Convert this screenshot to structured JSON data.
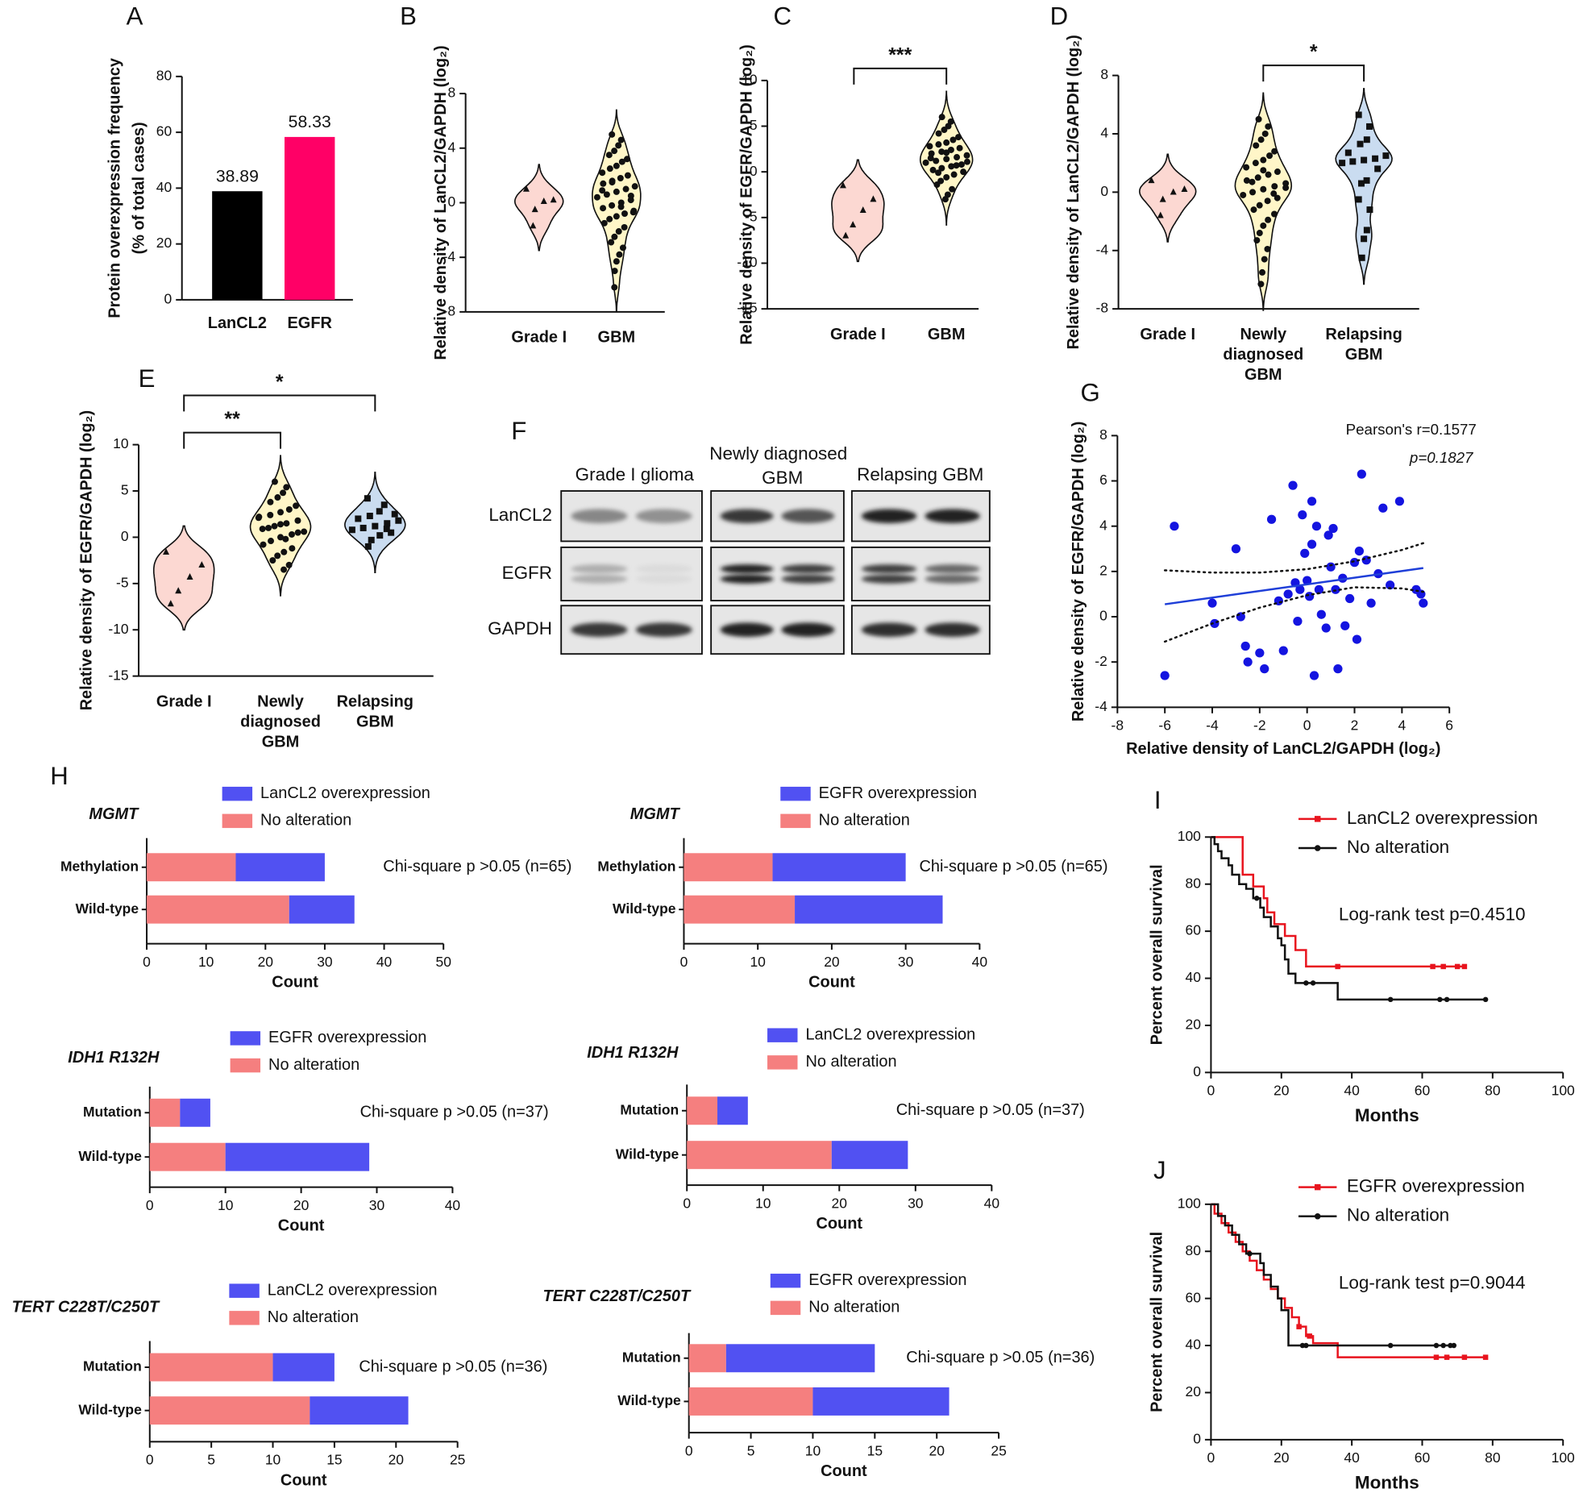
{
  "chart_data": [
    {
      "type": "bar",
      "panel": "A",
      "ylabel": [
        "Protein overexpression frequency",
        "(% of total cases)"
      ],
      "categories": [
        "LanCL2",
        "EGFR"
      ],
      "values": [
        38.89,
        58.33
      ],
      "colors": [
        "#000000",
        "#ff0066"
      ],
      "ylim": [
        0,
        80
      ],
      "yticks": [
        0,
        20,
        40,
        60,
        80
      ]
    },
    {
      "type": "violin",
      "panel": "B",
      "ylabel": "Relative density of LanCL2/GAPDH (log₂)",
      "categories": [
        [
          "Grade I"
        ],
        [
          "GBM"
        ]
      ],
      "series": [
        {
          "color": "#fcd8d2",
          "marker": "triangle",
          "values": [
            1.0,
            0.2,
            0.1,
            -0.5,
            -1.7
          ]
        },
        {
          "color": "#fff6c8",
          "marker": "circle",
          "values": [
            5,
            4.6,
            4.2,
            3.8,
            3.5,
            3.2,
            3,
            2.7,
            2.5,
            2.2,
            2,
            1.8,
            1.6,
            1.4,
            1.2,
            1,
            0.8,
            0.6,
            0.4,
            0.2,
            0,
            -0.2,
            -0.4,
            -0.6,
            -0.8,
            -1,
            -1.2,
            -1.5,
            -1.8,
            -2.1,
            -2.5,
            -2.9,
            -3.3,
            -3.8,
            -4.3,
            -5,
            -6.2,
            0.5,
            -0.3,
            1.5,
            0.9,
            -0.7
          ]
        }
      ],
      "ylim": [
        -8,
        8
      ],
      "yticks": [
        -8,
        -4,
        0,
        4,
        8
      ]
    },
    {
      "type": "violin",
      "panel": "C",
      "ylabel": "Relative density of EGFR/GAPDH (log₂)",
      "categories": [
        [
          "Grade I"
        ],
        [
          "GBM"
        ]
      ],
      "significance": [
        "***"
      ],
      "series": [
        {
          "color": "#fcd8d2",
          "marker": "triangle",
          "values": [
            -1.5,
            -3,
            -4.2,
            -5.8,
            -7
          ]
        },
        {
          "color": "#fff6c8",
          "marker": "circle",
          "values": [
            6,
            5.5,
            5,
            4.6,
            4.2,
            3.8,
            3.5,
            3.2,
            3,
            2.8,
            2.6,
            2.4,
            2.2,
            2,
            1.8,
            1.6,
            1.4,
            1.2,
            1,
            0.8,
            0.6,
            0.4,
            0.2,
            0,
            -0.3,
            -0.6,
            -1,
            -1.4,
            -1.9,
            -2.5,
            -3,
            1.5,
            1.1,
            0.7,
            2.1,
            -0.1
          ]
        }
      ],
      "ylim": [
        -15,
        10
      ],
      "yticks": [
        -15,
        -10,
        -5,
        0,
        5,
        10
      ]
    },
    {
      "type": "violin",
      "panel": "D",
      "ylabel": "Relative density of LanCL2/GAPDH (log₂)",
      "categories": [
        [
          "Grade I"
        ],
        [
          "Newly",
          "diagnosed",
          "GBM"
        ],
        [
          "Relapsing",
          "GBM"
        ]
      ],
      "significance": [
        "*"
      ],
      "series": [
        {
          "color": "#fcd8d2",
          "marker": "triangle",
          "values": [
            0.8,
            0.2,
            0,
            -0.5,
            -1.6
          ]
        },
        {
          "color": "#fff6c8",
          "marker": "circle",
          "values": [
            5,
            4.5,
            4,
            3.6,
            3.2,
            2.8,
            2.5,
            2.2,
            2,
            1.7,
            1.4,
            1.2,
            1,
            0.8,
            0.6,
            0.4,
            0.2,
            0,
            -0.2,
            -0.4,
            -0.6,
            -0.9,
            -1.2,
            -1.5,
            -1.9,
            -2.3,
            -2.8,
            -3.3,
            -3.9,
            -4.6,
            -5.5,
            -6.3,
            0.3,
            -0.1,
            1.5,
            0.7
          ]
        },
        {
          "color": "#cadcf0",
          "marker": "square",
          "values": [
            5.3,
            4.5,
            3.6,
            3.3,
            2.7,
            2.5,
            2.3,
            2.2,
            2.1,
            2,
            1.6,
            0.8,
            0.6,
            -0.5,
            -1.2,
            -2.6,
            -3.2,
            -4.5
          ]
        }
      ],
      "ylim": [
        -8,
        8
      ],
      "yticks": [
        -8,
        -4,
        0,
        4,
        8
      ]
    },
    {
      "type": "violin",
      "panel": "E",
      "ylabel": "Relative density of EGFR/GAPDH (log₂)",
      "categories": [
        [
          "Grade I"
        ],
        [
          "Newly",
          "diagnosed",
          "GBM"
        ],
        [
          "Relapsing",
          "GBM"
        ]
      ],
      "significance": [
        "*",
        "**"
      ],
      "series": [
        {
          "color": "#fcd8d2",
          "marker": "triangle",
          "values": [
            -1.6,
            -3,
            -4.3,
            -5.8,
            -7.2
          ]
        },
        {
          "color": "#fff6c8",
          "marker": "circle",
          "values": [
            6,
            5.4,
            4.8,
            4.3,
            3.8,
            3.4,
            3,
            2.7,
            2.4,
            2.1,
            1.8,
            1.5,
            1.2,
            0.9,
            0.6,
            0.3,
            0,
            -0.4,
            -0.8,
            -1.2,
            -1.6,
            -2,
            -2.5,
            -3,
            -3.5,
            1.4,
            1,
            2.2,
            0.5,
            -0.2
          ]
        },
        {
          "color": "#cadcf0",
          "marker": "square",
          "values": [
            4.2,
            3.5,
            2.8,
            2.3,
            2,
            1.8,
            1.5,
            1.2,
            1,
            0.8,
            0.5,
            0.2,
            -0.3,
            -1,
            2.5,
            0.9
          ]
        }
      ],
      "ylim": [
        -15,
        10
      ],
      "yticks": [
        -15,
        -10,
        -5,
        0,
        5,
        10
      ]
    },
    {
      "type": "scatter",
      "panel": "G",
      "xlabel": "Relative density of LanCL2/GAPDH  (log₂)",
      "ylabel": "Relative density of EGFR/GAPDH  (log₂)",
      "annotations": [
        "Pearson's r=0.1577",
        "p=0.1827"
      ],
      "color": "#1414e0",
      "x": [
        -6,
        -5.6,
        -4,
        -3.9,
        -3,
        -2.8,
        -2.6,
        -2.5,
        -2,
        -1.8,
        -1.5,
        -1.2,
        -1,
        -0.8,
        -0.6,
        -0.5,
        -0.4,
        -0.3,
        -0.2,
        0,
        0.1,
        0.2,
        0.3,
        0.4,
        0.5,
        0.6,
        0.8,
        1,
        1.1,
        1.2,
        1.3,
        1.5,
        1.6,
        1.8,
        2,
        2.1,
        2.3,
        2.5,
        2.7,
        3,
        3.2,
        3.5,
        3.9,
        4.6,
        4.8,
        4.9,
        0.2,
        -0.1,
        0.9,
        2.2
      ],
      "y": [
        -2.6,
        4,
        0.6,
        -0.3,
        3,
        0,
        -1.3,
        -2,
        -1.6,
        -2.3,
        4.3,
        0.7,
        -1.5,
        1,
        5.8,
        1.5,
        -0.2,
        1.2,
        4.5,
        1.6,
        0.9,
        5.1,
        -2.6,
        4,
        1.2,
        0.1,
        -0.5,
        2.2,
        3.9,
        1.2,
        -2.3,
        1.7,
        -0.4,
        0.8,
        2.4,
        -1,
        6.3,
        2.5,
        0.6,
        1.9,
        4.8,
        1.4,
        5.1,
        1.2,
        1.0,
        0.6,
        3.2,
        2.8,
        3.6,
        2.9
      ],
      "fit": {
        "color": "#1f3fd8",
        "x": [
          -6,
          4.9
        ],
        "y": [
          0.55,
          2.15
        ]
      },
      "ci": {
        "x": [
          -6,
          -4,
          -2,
          0,
          2,
          4,
          4.9
        ],
        "upper": [
          2.05,
          1.95,
          1.95,
          2.1,
          2.45,
          2.95,
          3.25
        ],
        "lower": [
          -1.1,
          -0.3,
          0.4,
          0.95,
          1.3,
          1.25,
          1.1
        ]
      },
      "xlim": [
        -8,
        6
      ],
      "xticks": [
        -8,
        -6,
        -4,
        -2,
        0,
        2,
        4,
        6
      ],
      "ylim": [
        -4,
        8
      ],
      "yticks": [
        -4,
        -2,
        0,
        2,
        4,
        6,
        8
      ]
    },
    {
      "type": "bar",
      "orientation": "horizontal",
      "stacked": true,
      "panel": "H",
      "title": "MGMT",
      "xlabel": "Count",
      "annotation": "Chi-square p >0.05 (n=65)",
      "categories": [
        "Methylation",
        "Wild-type"
      ],
      "series": [
        {
          "name": "No alteration",
          "color": "#f57f7f",
          "values": [
            15,
            24
          ]
        },
        {
          "name": "LanCL2 overexpression",
          "color": "#5151f2",
          "values": [
            15,
            11
          ]
        }
      ],
      "xlim": [
        0,
        50
      ],
      "xticks": [
        0,
        10,
        20,
        30,
        40,
        50
      ]
    },
    {
      "type": "bar",
      "orientation": "horizontal",
      "stacked": true,
      "title": "MGMT",
      "xlabel": "Count",
      "annotation": "Chi-square p >0.05 (n=65)",
      "categories": [
        "Methylation",
        "Wild-type"
      ],
      "series": [
        {
          "name": "No alteration",
          "color": "#f57f7f",
          "values": [
            12,
            15
          ]
        },
        {
          "name": "EGFR overexpression",
          "color": "#5151f2",
          "values": [
            18,
            20
          ]
        }
      ],
      "xlim": [
        0,
        40
      ],
      "xticks": [
        0,
        10,
        20,
        30,
        40
      ]
    },
    {
      "type": "bar",
      "orientation": "horizontal",
      "stacked": true,
      "title": "IDH1 R132H",
      "xlabel": "Count",
      "annotation": "Chi-square p >0.05 (n=37)",
      "categories": [
        "Mutation",
        "Wild-type"
      ],
      "series": [
        {
          "name": "No alteration",
          "color": "#f57f7f",
          "values": [
            4,
            10
          ]
        },
        {
          "name": "EGFR overexpression",
          "color": "#5151f2",
          "values": [
            4,
            19
          ]
        }
      ],
      "xlim": [
        0,
        40
      ],
      "xticks": [
        0,
        10,
        20,
        30,
        40
      ]
    },
    {
      "type": "bar",
      "orientation": "horizontal",
      "stacked": true,
      "title": "IDH1 R132H",
      "xlabel": "Count",
      "annotation": "Chi-square p >0.05 (n=37)",
      "categories": [
        "Mutation",
        "Wild-type"
      ],
      "series": [
        {
          "name": "No alteration",
          "color": "#f57f7f",
          "values": [
            4,
            19
          ]
        },
        {
          "name": "LanCL2 overexpression",
          "color": "#5151f2",
          "values": [
            4,
            10
          ]
        }
      ],
      "xlim": [
        0,
        40
      ],
      "xticks": [
        0,
        10,
        20,
        30,
        40
      ]
    },
    {
      "type": "bar",
      "orientation": "horizontal",
      "stacked": true,
      "title": "TERT C228T/C250T",
      "xlabel": "Count",
      "annotation": "Chi-square p >0.05 (n=36)",
      "categories": [
        "Mutation",
        "Wild-type"
      ],
      "series": [
        {
          "name": "No alteration",
          "color": "#f57f7f",
          "values": [
            10,
            13
          ]
        },
        {
          "name": "LanCL2 overexpression",
          "color": "#5151f2",
          "values": [
            5,
            8
          ]
        }
      ],
      "xlim": [
        0,
        25
      ],
      "xticks": [
        0,
        5,
        10,
        15,
        20,
        25
      ]
    },
    {
      "type": "bar",
      "orientation": "horizontal",
      "stacked": true,
      "title": "TERT C228T/C250T",
      "xlabel": "Count",
      "annotation": "Chi-square p >0.05 (n=36)",
      "categories": [
        "Mutation",
        "Wild-type"
      ],
      "series": [
        {
          "name": "No alteration",
          "color": "#f57f7f",
          "values": [
            3,
            10
          ]
        },
        {
          "name": "EGFR overexpression",
          "color": "#5151f2",
          "values": [
            12,
            11
          ]
        }
      ],
      "xlim": [
        0,
        25
      ],
      "xticks": [
        0,
        5,
        10,
        15,
        20,
        25
      ]
    },
    {
      "type": "survival",
      "panel": "I",
      "xlabel": "Months",
      "ylabel": "Percent overall survival",
      "annotation": "Log-rank test p=0.4510",
      "series": [
        {
          "name": "LanCL2 overexpression",
          "color": "#e8141e",
          "marker": "square",
          "x": [
            0,
            9,
            12,
            15,
            16,
            18,
            21,
            24,
            27
          ],
          "values": [
            100,
            84,
            79,
            74,
            68,
            63,
            58,
            52,
            45
          ],
          "censor_x": [
            36,
            63,
            66,
            70,
            72
          ],
          "censor_values": [
            45,
            45,
            45,
            45,
            45
          ]
        },
        {
          "name": "No alteration",
          "color": "#111111",
          "marker": "circle",
          "x": [
            0,
            1,
            2,
            3,
            5,
            6,
            8,
            10,
            12,
            14,
            15,
            17,
            19,
            20,
            21,
            22,
            24,
            36
          ],
          "values": [
            100,
            97,
            94,
            91,
            88,
            84,
            80,
            78,
            74,
            70,
            66,
            62,
            57,
            54,
            48,
            42,
            38,
            31
          ],
          "censor_x": [
            13,
            27,
            29,
            51,
            65,
            67,
            78
          ],
          "censor_values": [
            74,
            38,
            38,
            31,
            31,
            31,
            31
          ]
        }
      ],
      "xlim": [
        0,
        100
      ],
      "xticks": [
        0,
        20,
        40,
        60,
        80,
        100
      ],
      "ylim": [
        0,
        100
      ],
      "yticks": [
        0,
        20,
        40,
        60,
        80,
        100
      ]
    },
    {
      "type": "survival",
      "panel": "J",
      "xlabel": "Months",
      "ylabel": "Percent overall survival",
      "annotation": "Log-rank test p=0.9044",
      "series": [
        {
          "name": "EGFR overexpression",
          "color": "#e8141e",
          "marker": "square",
          "x": [
            0,
            1,
            3,
            5,
            7,
            9,
            11,
            13,
            15,
            17,
            19,
            21,
            23,
            25,
            27,
            29,
            36
          ],
          "values": [
            100,
            96,
            92,
            88,
            84,
            80,
            76,
            72,
            68,
            64,
            60,
            56,
            52,
            48,
            44,
            41,
            35
          ],
          "censor_x": [
            25,
            28,
            64,
            67,
            72,
            78
          ],
          "censor_values": [
            48,
            44,
            35,
            35,
            35,
            35
          ]
        },
        {
          "name": "No alteration",
          "color": "#111111",
          "marker": "circle",
          "x": [
            0,
            2,
            4,
            6,
            8,
            10,
            14,
            15,
            17,
            19,
            20,
            22
          ],
          "values": [
            100,
            95,
            91,
            87,
            83,
            79,
            75,
            70,
            65,
            60,
            55,
            40
          ],
          "censor_x": [
            11,
            26,
            27,
            51,
            64,
            66,
            68,
            69
          ],
          "censor_values": [
            79,
            40,
            40,
            40,
            40,
            40,
            40,
            40
          ]
        }
      ],
      "xlim": [
        0,
        100
      ],
      "xticks": [
        0,
        20,
        40,
        60,
        80,
        100
      ],
      "ylim": [
        0,
        100
      ],
      "yticks": [
        0,
        20,
        40,
        60,
        80,
        100
      ]
    }
  ],
  "blot": {
    "panel": "F",
    "columns": [
      [
        "Grade I glioma"
      ],
      [
        "Newly diagnosed",
        "GBM"
      ],
      [
        "Relapsing GBM"
      ]
    ],
    "rows": [
      "LanCL2",
      "EGFR",
      "GAPDH"
    ]
  }
}
